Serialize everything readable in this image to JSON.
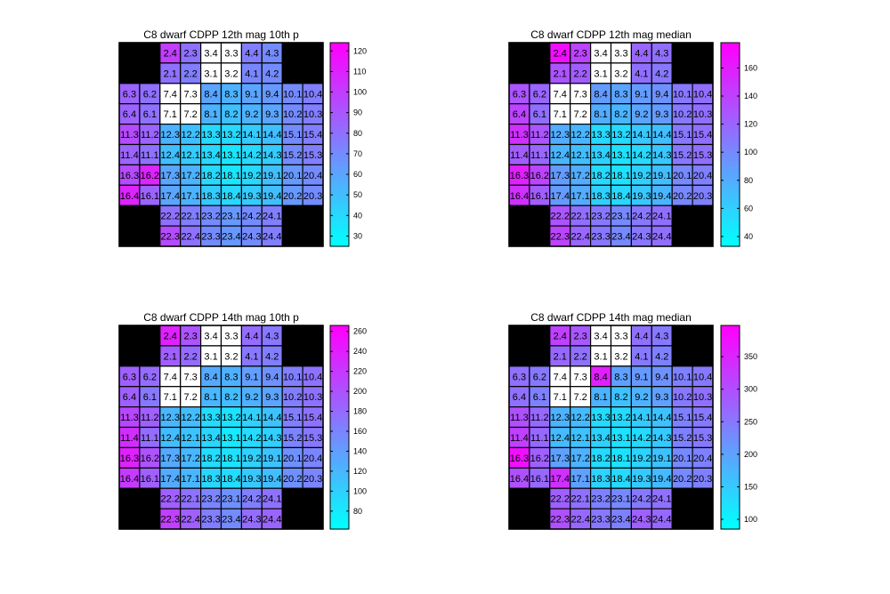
{
  "colormap": {
    "low": "#00ffff",
    "high": "#ff00ff",
    "missing": "#000000",
    "na_cell": "#ffffff"
  },
  "labels": [
    [
      "",
      "",
      "2.4",
      "2.3",
      "3.4",
      "3.3",
      "4.4",
      "4.3",
      "",
      ""
    ],
    [
      "",
      "",
      "2.1",
      "2.2",
      "3.1",
      "3.2",
      "4.1",
      "4.2",
      "",
      ""
    ],
    [
      "6.3",
      "6.2",
      "7.4",
      "7.3",
      "8.4",
      "8.3",
      "9.1",
      "9.4",
      "10.1",
      "10.4"
    ],
    [
      "6.4",
      "6.1",
      "7.1",
      "7.2",
      "8.1",
      "8.2",
      "9.2",
      "9.3",
      "10.2",
      "10.3"
    ],
    [
      "11.3",
      "11.2",
      "12.3",
      "12.2",
      "13.3",
      "13.2",
      "14.1",
      "14.4",
      "15.1",
      "15.4"
    ],
    [
      "11.4",
      "11.1",
      "12.4",
      "12.1",
      "13.4",
      "13.1",
      "14.2",
      "14.3",
      "15.2",
      "15.3"
    ],
    [
      "16.3",
      "16.2",
      "17.3",
      "17.2",
      "18.2",
      "18.1",
      "19.2",
      "19.1",
      "20.1",
      "20.4"
    ],
    [
      "16.4",
      "16.1",
      "17.4",
      "17.1",
      "18.3",
      "18.4",
      "19.3",
      "19.4",
      "20.2",
      "20.3"
    ],
    [
      "",
      "",
      "22.2",
      "22.1",
      "23.2",
      "23.1",
      "24.2",
      "24.1",
      "",
      ""
    ],
    [
      "",
      "",
      "22.3",
      "22.4",
      "23.3",
      "23.4",
      "24.3",
      "24.4",
      "",
      ""
    ]
  ],
  "chart_data": [
    {
      "type": "heatmap",
      "title": "C8 dwarf  CDPP 12th mag 10th p",
      "clim": [
        25,
        124
      ],
      "colorbar_ticks": [
        30,
        40,
        50,
        60,
        70,
        80,
        90,
        100,
        110,
        120
      ],
      "values": [
        [
          null,
          null,
          100,
          80,
          "NaN",
          "NaN",
          75,
          70,
          null,
          null
        ],
        [
          null,
          null,
          80,
          75,
          "NaN",
          "NaN",
          72,
          70,
          null,
          null
        ],
        [
          85,
          80,
          "NaN",
          "NaN",
          60,
          55,
          60,
          65,
          70,
          75
        ],
        [
          85,
          80,
          "NaN",
          "NaN",
          55,
          50,
          55,
          60,
          70,
          75
        ],
        [
          95,
          85,
          55,
          50,
          40,
          40,
          45,
          50,
          70,
          75
        ],
        [
          85,
          80,
          50,
          45,
          40,
          35,
          40,
          45,
          70,
          75
        ],
        [
          95,
          110,
          60,
          55,
          40,
          35,
          40,
          50,
          65,
          70
        ],
        [
          110,
          85,
          60,
          55,
          45,
          40,
          45,
          50,
          65,
          70
        ],
        [
          null,
          null,
          80,
          75,
          70,
          65,
          70,
          75,
          null,
          null
        ],
        [
          null,
          null,
          95,
          80,
          70,
          65,
          70,
          75,
          null,
          null
        ]
      ]
    },
    {
      "type": "heatmap",
      "title": "C8 dwarf  CDPP 12th mag median",
      "clim": [
        33,
        178
      ],
      "colorbar_ticks": [
        40,
        60,
        80,
        100,
        120,
        140,
        160
      ],
      "values": [
        [
          null,
          null,
          170,
          140,
          "NaN",
          "NaN",
          120,
          115,
          null,
          null
        ],
        [
          null,
          null,
          130,
          125,
          "NaN",
          "NaN",
          115,
          110,
          null,
          null
        ],
        [
          130,
          120,
          "NaN",
          "NaN",
          90,
          85,
          90,
          95,
          110,
          115
        ],
        [
          140,
          115,
          "NaN",
          "NaN",
          80,
          75,
          85,
          90,
          110,
          115
        ],
        [
          150,
          130,
          80,
          75,
          55,
          55,
          65,
          70,
          110,
          115
        ],
        [
          125,
          120,
          75,
          70,
          60,
          50,
          55,
          65,
          110,
          115
        ],
        [
          160,
          140,
          90,
          80,
          55,
          50,
          60,
          70,
          100,
          105
        ],
        [
          150,
          125,
          90,
          80,
          60,
          55,
          65,
          75,
          100,
          105
        ],
        [
          null,
          null,
          130,
          115,
          110,
          100,
          110,
          115,
          null,
          null
        ],
        [
          null,
          null,
          140,
          120,
          110,
          100,
          110,
          115,
          null,
          null
        ]
      ]
    },
    {
      "type": "heatmap",
      "title": "C8 dwarf  CDPP 14th mag 10th p",
      "clim": [
        62,
        266
      ],
      "colorbar_ticks": [
        80,
        100,
        120,
        140,
        160,
        180,
        200,
        220,
        240,
        260
      ],
      "values": [
        [
          null,
          null,
          240,
          200,
          "NaN",
          "NaN",
          180,
          170,
          null,
          null
        ],
        [
          null,
          null,
          190,
          180,
          "NaN",
          "NaN",
          170,
          165,
          null,
          null
        ],
        [
          190,
          180,
          "NaN",
          "NaN",
          130,
          125,
          140,
          150,
          165,
          175
        ],
        [
          190,
          170,
          "NaN",
          "NaN",
          120,
          115,
          125,
          135,
          165,
          175
        ],
        [
          210,
          190,
          120,
          115,
          90,
          85,
          100,
          110,
          165,
          175
        ],
        [
          230,
          180,
          115,
          110,
          95,
          80,
          90,
          100,
          160,
          170
        ],
        [
          240,
          200,
          130,
          120,
          90,
          85,
          100,
          110,
          150,
          160
        ],
        [
          220,
          190,
          130,
          120,
          95,
          90,
          105,
          115,
          150,
          160
        ],
        [
          null,
          null,
          190,
          175,
          160,
          150,
          165,
          175,
          null,
          null
        ],
        [
          null,
          null,
          215,
          190,
          165,
          155,
          180,
          185,
          null,
          null
        ]
      ]
    },
    {
      "type": "heatmap",
      "title": "C8 dwarf  CDPP 14th mag median",
      "clim": [
        85,
        398
      ],
      "colorbar_ticks": [
        100,
        150,
        200,
        250,
        300,
        350
      ],
      "values": [
        [
          null,
          null,
          320,
          290,
          "NaN",
          "NaN",
          260,
          250,
          null,
          null
        ],
        [
          null,
          null,
          270,
          260,
          "NaN",
          "NaN",
          250,
          240,
          null,
          null
        ],
        [
          260,
          250,
          "NaN",
          "NaN",
          360,
          200,
          210,
          220,
          240,
          250
        ],
        [
          260,
          240,
          "NaN",
          "NaN",
          180,
          160,
          180,
          200,
          250,
          260
        ],
        [
          300,
          270,
          180,
          170,
          130,
          130,
          150,
          160,
          240,
          250
        ],
        [
          320,
          270,
          170,
          160,
          140,
          120,
          130,
          150,
          240,
          250
        ],
        [
          380,
          280,
          200,
          180,
          130,
          120,
          140,
          160,
          230,
          240
        ],
        [
          300,
          270,
          340,
          200,
          140,
          130,
          150,
          170,
          230,
          240
        ],
        [
          null,
          null,
          280,
          260,
          240,
          230,
          250,
          260,
          null,
          null
        ],
        [
          null,
          null,
          300,
          270,
          250,
          240,
          280,
          270,
          null,
          null
        ]
      ]
    }
  ]
}
